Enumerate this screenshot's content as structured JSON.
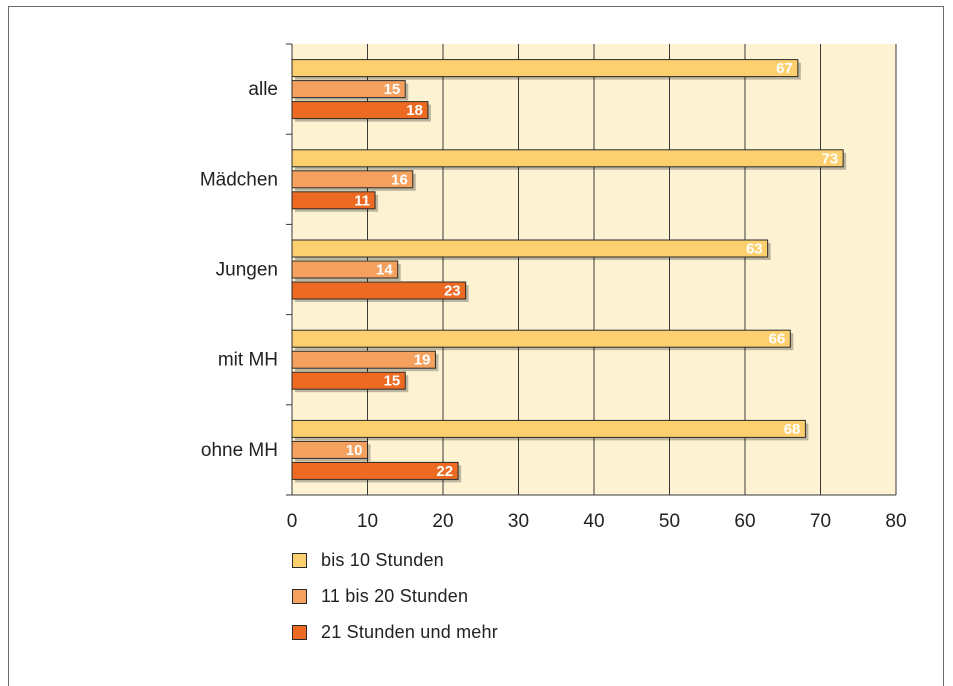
{
  "chart_data": {
    "type": "bar",
    "orientation": "horizontal",
    "categories": [
      "alle",
      "Mädchen",
      "Jungen",
      "mit MH",
      "ohne MH"
    ],
    "series": [
      {
        "name": "bis 10 Stunden",
        "color": "#fcd06e",
        "values": [
          67,
          73,
          63,
          66,
          68
        ]
      },
      {
        "name": "11 bis 20 Stunden",
        "color": "#f4a15f",
        "values": [
          15,
          16,
          14,
          19,
          10
        ]
      },
      {
        "name": "21 Stunden und mehr",
        "color": "#ec6a22",
        "values": [
          18,
          11,
          23,
          15,
          22
        ]
      }
    ],
    "xlim": [
      0,
      80
    ],
    "xticks": [
      0,
      10,
      20,
      30,
      40,
      50,
      60,
      70,
      80
    ],
    "grid": true,
    "background_color": "#fdf3d3",
    "legend_position": "bottom-left"
  }
}
